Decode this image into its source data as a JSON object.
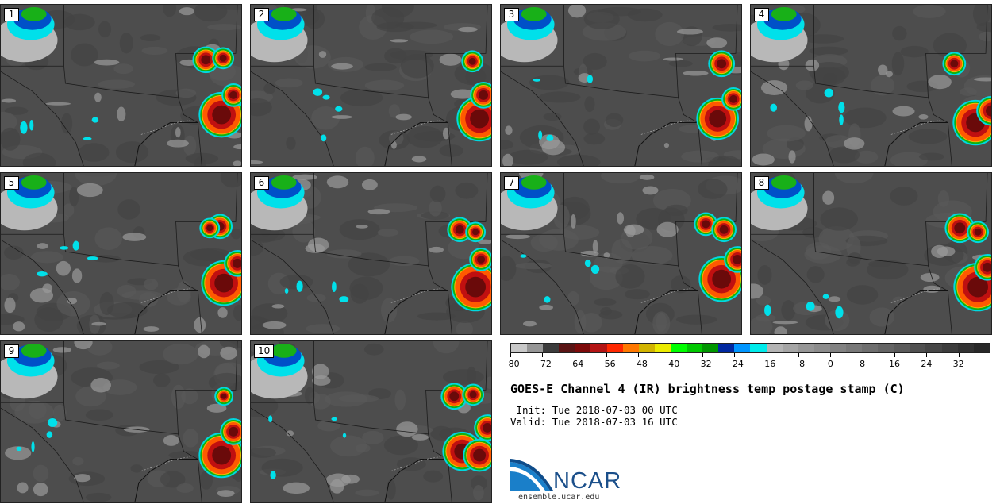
{
  "panels": [
    {
      "label": "1"
    },
    {
      "label": "2"
    },
    {
      "label": "3"
    },
    {
      "label": "4"
    },
    {
      "label": "5"
    },
    {
      "label": "6"
    },
    {
      "label": "7"
    },
    {
      "label": "8"
    },
    {
      "label": "9"
    },
    {
      "label": "10"
    }
  ],
  "colorbar": {
    "colors": [
      "#c8c8c8",
      "#969696",
      "#3c3c3c",
      "#5a1414",
      "#7d0a0a",
      "#b41414",
      "#ff2800",
      "#ff7800",
      "#d2b400",
      "#ebeb00",
      "#00ff00",
      "#00c800",
      "#009600",
      "#0028a0",
      "#0096ff",
      "#00ebeb",
      "#b4b4b4",
      "#a5a5a5",
      "#969696",
      "#8c8c8c",
      "#828282",
      "#787878",
      "#6e6e6e",
      "#646464",
      "#5a5a5a",
      "#505050",
      "#464646",
      "#3c3c3c",
      "#323232",
      "#282828"
    ],
    "tick_values": [
      -80,
      -72,
      -64,
      -56,
      -48,
      -40,
      -32,
      -24,
      -16,
      -8,
      0,
      8,
      16,
      24,
      32
    ],
    "tick_labels": [
      "−80",
      "−72",
      "−64",
      "−56",
      "−48",
      "−40",
      "−32",
      "−24",
      "−16",
      "−8",
      "0",
      "8",
      "16",
      "24",
      "32"
    ],
    "range": [
      -80,
      40
    ]
  },
  "title": "GOES-E Channel 4 (IR) brightness temp postage stamp (C)",
  "init": " Init: Tue 2018-07-03 00 UTC",
  "valid": "Valid: Tue 2018-07-03 16 UTC",
  "logo": {
    "text": "NCAR",
    "url": "ensemble.ucar.edu"
  }
}
